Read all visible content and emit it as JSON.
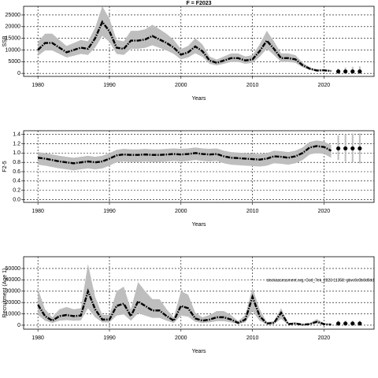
{
  "chart_data": [
    {
      "type": "line",
      "title": "F = F2023",
      "xlabel": "Years",
      "ylabel": "SSB",
      "x": [
        1980,
        1981,
        1982,
        1983,
        1984,
        1985,
        1986,
        1987,
        1988,
        1989,
        1990,
        1991,
        1992,
        1993,
        1994,
        1995,
        1996,
        1997,
        1998,
        1999,
        2000,
        2001,
        2002,
        2003,
        2004,
        2005,
        2006,
        2007,
        2008,
        2009,
        2010,
        2011,
        2012,
        2013,
        2014,
        2015,
        2016,
        2017,
        2018,
        2019,
        2020,
        2021
      ],
      "values": [
        10000,
        13000,
        13000,
        11000,
        9000,
        10000,
        11000,
        10500,
        15000,
        22000,
        18000,
        11000,
        10500,
        14000,
        14000,
        14500,
        16000,
        14500,
        13000,
        11000,
        8000,
        9000,
        11500,
        9500,
        5500,
        4500,
        5500,
        6500,
        6500,
        5500,
        6000,
        9500,
        14000,
        10500,
        6500,
        6500,
        6000,
        3500,
        2000,
        1200,
        1300,
        1000
      ],
      "lower": [
        7500,
        9800,
        9800,
        8300,
        6800,
        7500,
        8300,
        7900,
        11000,
        16000,
        13500,
        8300,
        7900,
        10500,
        10500,
        10900,
        12000,
        10900,
        9800,
        8300,
        6000,
        6800,
        8600,
        7100,
        4100,
        3400,
        4100,
        4900,
        4900,
        4100,
        4500,
        7100,
        10500,
        7900,
        4900,
        4900,
        4500,
        2600,
        1500,
        900,
        1000,
        700
      ],
      "upper": [
        13500,
        17000,
        17000,
        14300,
        11700,
        13000,
        14300,
        13700,
        19500,
        28700,
        23400,
        14300,
        13700,
        18200,
        18200,
        18900,
        20800,
        18900,
        16900,
        14300,
        10400,
        11700,
        15000,
        12400,
        7200,
        5900,
        7200,
        8500,
        8500,
        7200,
        7800,
        12400,
        18200,
        13700,
        8500,
        8500,
        7800,
        4600,
        2600,
        1600,
        1700,
        1400
      ],
      "projection": {
        "x": [
          2022,
          2023,
          2024,
          2025
        ],
        "values": [
          800,
          800,
          800,
          800
        ],
        "lower": [
          200,
          200,
          200,
          200
        ],
        "upper": [
          2000,
          2500,
          2800,
          3000
        ]
      },
      "xlim": [
        1978,
        2027
      ],
      "xticks": [
        1980,
        1990,
        2000,
        2010,
        2020
      ],
      "ylim": [
        -1300,
        28700
      ],
      "yticks": [
        0,
        5000,
        10000,
        15000,
        20000,
        25000
      ],
      "grid": true,
      "color": "#000000",
      "band_color": "#bebebe"
    },
    {
      "type": "line",
      "xlabel": "Years",
      "ylabel": "F2-5",
      "x": [
        1980,
        1981,
        1982,
        1983,
        1984,
        1985,
        1986,
        1987,
        1988,
        1989,
        1990,
        1991,
        1992,
        1993,
        1994,
        1995,
        1996,
        1997,
        1998,
        1999,
        2000,
        2001,
        2002,
        2003,
        2004,
        2005,
        2006,
        2007,
        2008,
        2009,
        2010,
        2011,
        2012,
        2013,
        2014,
        2015,
        2016,
        2017,
        2018,
        2019,
        2020,
        2021
      ],
      "values": [
        0.9,
        0.88,
        0.85,
        0.82,
        0.8,
        0.78,
        0.8,
        0.82,
        0.8,
        0.82,
        0.88,
        0.95,
        0.97,
        0.96,
        0.96,
        0.97,
        0.96,
        0.96,
        0.97,
        0.98,
        0.97,
        0.98,
        1.0,
        0.98,
        0.97,
        0.98,
        0.93,
        0.9,
        0.89,
        0.88,
        0.87,
        0.86,
        0.88,
        0.93,
        0.92,
        0.9,
        0.93,
        1.0,
        1.12,
        1.15,
        1.13,
        1.05
      ],
      "lower": [
        0.75,
        0.73,
        0.7,
        0.67,
        0.65,
        0.63,
        0.65,
        0.67,
        0.65,
        0.67,
        0.73,
        0.8,
        0.82,
        0.81,
        0.81,
        0.82,
        0.81,
        0.81,
        0.82,
        0.83,
        0.82,
        0.83,
        0.85,
        0.83,
        0.82,
        0.83,
        0.78,
        0.75,
        0.74,
        0.73,
        0.72,
        0.71,
        0.73,
        0.78,
        0.77,
        0.75,
        0.78,
        0.85,
        0.97,
        1.0,
        0.98,
        0.9
      ],
      "upper": [
        1.02,
        1.0,
        0.97,
        0.94,
        0.92,
        0.9,
        0.92,
        0.94,
        0.92,
        0.94,
        1.0,
        1.07,
        1.09,
        1.08,
        1.08,
        1.09,
        1.08,
        1.08,
        1.09,
        1.1,
        1.09,
        1.1,
        1.12,
        1.1,
        1.09,
        1.1,
        1.05,
        1.02,
        1.01,
        1.0,
        0.99,
        0.98,
        1.0,
        1.05,
        1.04,
        1.02,
        1.05,
        1.12,
        1.24,
        1.27,
        1.25,
        1.17
      ],
      "projection": {
        "x": [
          2022,
          2023,
          2024,
          2025
        ],
        "values": [
          1.1,
          1.1,
          1.1,
          1.1
        ],
        "lower": [
          0.85,
          0.82,
          0.8,
          0.78
        ],
        "upper": [
          1.38,
          1.4,
          1.42,
          1.42
        ]
      },
      "xlim": [
        1978,
        2027
      ],
      "xticks": [
        1980,
        1990,
        2000,
        2010,
        2020
      ],
      "ylim": [
        -0.06,
        1.48
      ],
      "yticks": [
        {
          "value": 0,
          "label": "0.0"
        },
        0.2,
        0.4,
        0.6,
        0.8,
        {
          "value": 1,
          "label": "1.0"
        },
        1.2,
        1.4
      ],
      "grid": true,
      "color": "#000000",
      "band_color": "#bebebe"
    },
    {
      "type": "line",
      "xlabel": "Years",
      "ylabel": "Recruitment (Age 1)",
      "annotation": "stockassessment.org, Cod_7ek_2023 11358: gbvc0c0b0d0dd",
      "x": [
        1980,
        1981,
        1982,
        1983,
        1984,
        1985,
        1986,
        1987,
        1988,
        1989,
        1990,
        1991,
        1992,
        1993,
        1994,
        1995,
        1996,
        1997,
        1998,
        1999,
        2000,
        2001,
        2002,
        2003,
        2004,
        2005,
        2006,
        2007,
        2008,
        2009,
        2010,
        2011,
        2012,
        2013,
        2014,
        2015,
        2016,
        2017,
        2018,
        2019,
        2020,
        2021
      ],
      "values": [
        18000,
        8000,
        4000,
        8000,
        9000,
        8000,
        8500,
        30000,
        14000,
        5000,
        5000,
        17000,
        19000,
        8000,
        21000,
        17000,
        13000,
        13000,
        8000,
        4000,
        17000,
        15000,
        6000,
        4000,
        5000,
        7000,
        7000,
        5000,
        2000,
        5000,
        25000,
        8000,
        1500,
        2000,
        11000,
        1000,
        1500,
        500,
        1000,
        3000,
        1000,
        500
      ],
      "lower": [
        9000,
        4000,
        2000,
        4000,
        4500,
        4000,
        4200,
        15000,
        7000,
        2500,
        2500,
        8500,
        9500,
        4000,
        10500,
        8500,
        6500,
        6500,
        4000,
        2000,
        8500,
        7500,
        3000,
        2000,
        2500,
        3500,
        3500,
        2500,
        1000,
        2500,
        12500,
        4000,
        700,
        1000,
        5500,
        500,
        700,
        200,
        500,
        1500,
        500,
        200
      ],
      "upper": [
        32000,
        14000,
        7000,
        14000,
        16000,
        14000,
        15000,
        54000,
        25000,
        9000,
        9000,
        30000,
        34000,
        14000,
        38000,
        30000,
        23000,
        23000,
        14000,
        7000,
        30000,
        27000,
        11000,
        7000,
        9000,
        12500,
        12500,
        9000,
        3600,
        9000,
        33000,
        14000,
        2700,
        3600,
        15000,
        1800,
        2700,
        900,
        1800,
        5400,
        1800,
        900
      ],
      "projection": {
        "x": [
          2022,
          2023,
          2024,
          2025
        ],
        "values": [
          1500,
          1500,
          1500,
          1500
        ],
        "lower": [
          500,
          500,
          500,
          500
        ],
        "upper": [
          4000,
          4000,
          4000,
          4000
        ]
      },
      "xlim": [
        1978,
        2027
      ],
      "xticks": [
        1980,
        1990,
        2000,
        2010,
        2020
      ],
      "ylim": [
        -3500,
        60400
      ],
      "yticks": [
        0,
        10000,
        20000,
        30000,
        40000,
        50000
      ],
      "grid": true,
      "color": "#000000",
      "band_color": "#bebebe"
    }
  ]
}
